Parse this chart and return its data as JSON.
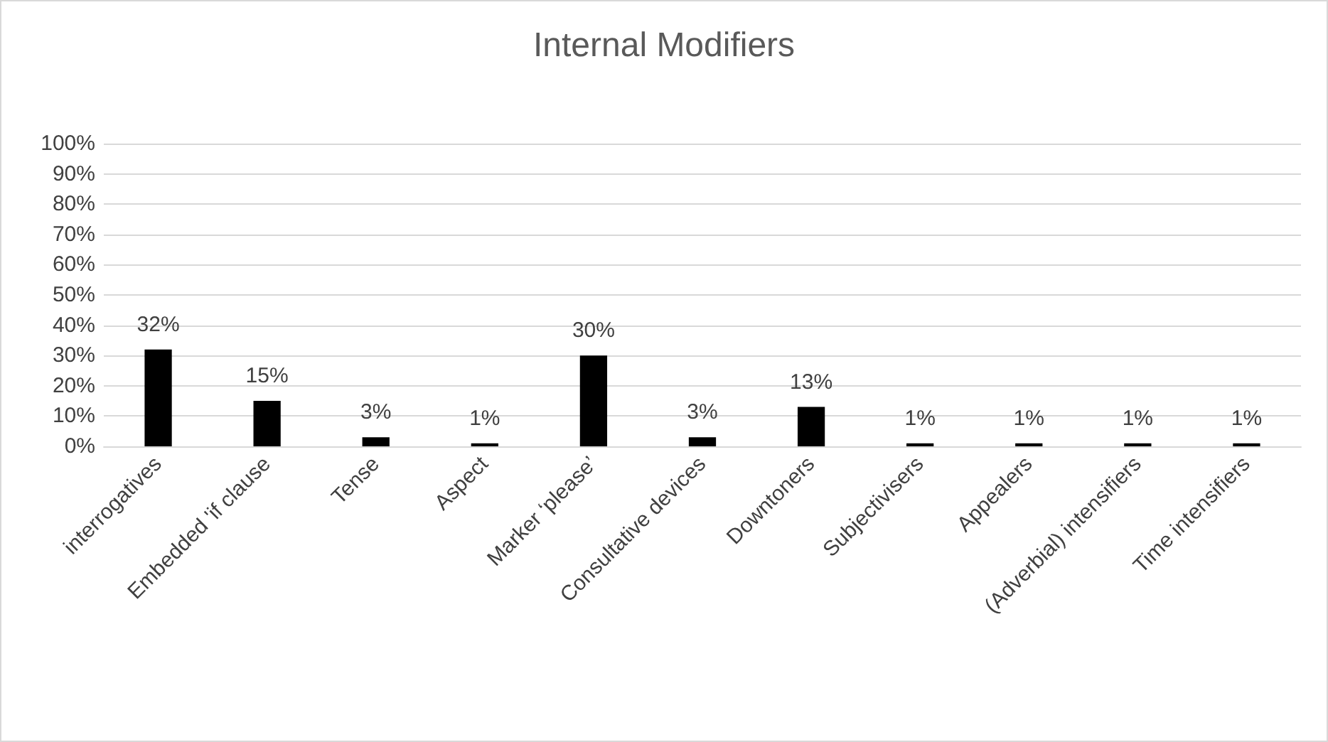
{
  "chart_data": {
    "type": "bar",
    "title": "Internal Modifiers",
    "categories": [
      "interrogatives",
      "Embedded 'if clause",
      "Tense",
      "Aspect",
      "Marker ‘please’",
      "Consultative devices",
      "Downtoners",
      "Subjectivisers",
      "Appealers",
      "(Adverbial) intensifiers",
      "Time intensifiers"
    ],
    "values": [
      32,
      15,
      3,
      1,
      30,
      3,
      13,
      1,
      1,
      1,
      1
    ],
    "value_labels": [
      "32%",
      "15%",
      "3%",
      "1%",
      "30%",
      "3%",
      "13%",
      "1%",
      "1%",
      "1%",
      "1%"
    ],
    "color": "#000000",
    "ylim": [
      0,
      100
    ],
    "yticks": [
      {
        "value": 0,
        "label": "0%"
      },
      {
        "value": 10,
        "label": "10%"
      },
      {
        "value": 20,
        "label": "20%"
      },
      {
        "value": 30,
        "label": "30%"
      },
      {
        "value": 40,
        "label": "40%"
      },
      {
        "value": 50,
        "label": "50%"
      },
      {
        "value": 60,
        "label": "60%"
      },
      {
        "value": 70,
        "label": "70%"
      },
      {
        "value": 80,
        "label": "80%"
      },
      {
        "value": 90,
        "label": "90%"
      },
      {
        "value": 100,
        "label": "100%"
      }
    ],
    "grid": "y"
  }
}
